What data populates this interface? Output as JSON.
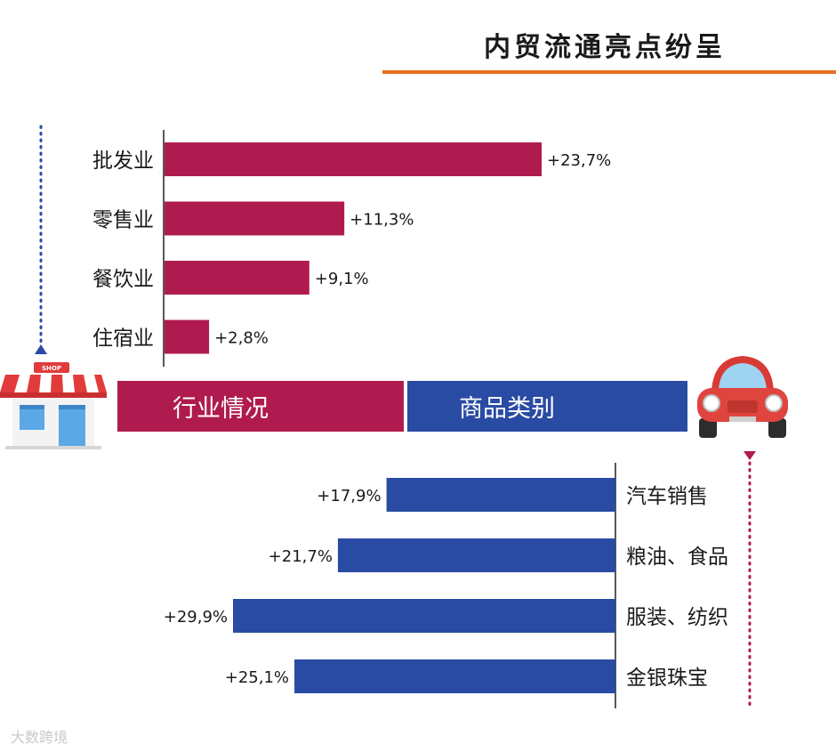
{
  "header": {
    "title": "内贸流通亮点纷呈"
  },
  "banners": {
    "left": "行业情况",
    "right": "商品类别"
  },
  "shop_sign": "SHOP",
  "watermark": "大数跨境",
  "colors": {
    "industry": "#b01b4f",
    "category": "#2a4ba3",
    "accent": "#e86d1f",
    "dots_left": "#2a4ba3",
    "dots_right": "#b01b4f"
  },
  "icons": [
    "shop-icon",
    "car-icon"
  ],
  "chart_data": [
    {
      "type": "bar",
      "orientation": "horizontal",
      "group": "行业情况",
      "categories": [
        "批发业",
        "零售业",
        "餐饮业",
        "住宿业"
      ],
      "values": [
        23.7,
        11.3,
        9.1,
        2.8
      ],
      "labels": [
        "+23,7%",
        "+11,3%",
        "+9,1%",
        "+2,8%"
      ],
      "direction": "right"
    },
    {
      "type": "bar",
      "orientation": "horizontal",
      "group": "商品类别",
      "categories": [
        "汽车销售",
        "粮油、食品",
        "服装、纺织",
        "金银珠宝"
      ],
      "values": [
        17.9,
        21.7,
        29.9,
        25.1
      ],
      "labels": [
        "+17,9%",
        "+21,7%",
        "+29,9%",
        "+25,1%"
      ],
      "direction": "left"
    }
  ]
}
